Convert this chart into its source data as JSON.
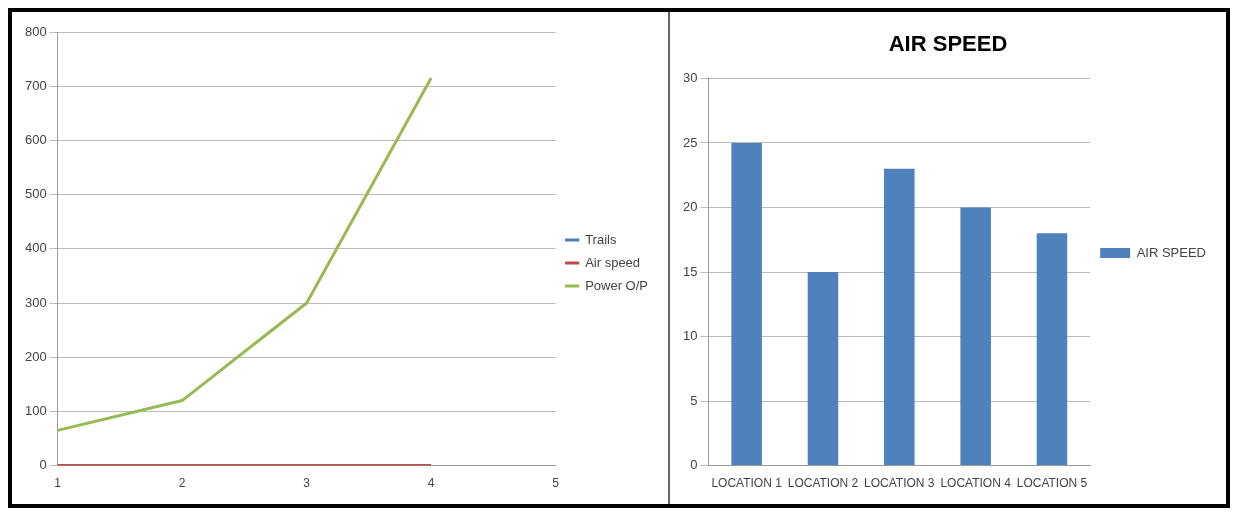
{
  "chart_data": [
    {
      "type": "line",
      "categories": [
        "1",
        "2",
        "3",
        "4",
        "5"
      ],
      "ylim": [
        0,
        800
      ],
      "yticks": [
        0,
        100,
        200,
        300,
        400,
        500,
        600,
        700,
        800
      ],
      "grid": "y",
      "legend": "right",
      "marker": "none",
      "line_style": "solid",
      "series": [
        {
          "name": "Trails",
          "color": "#4a7ebb",
          "values": [
            null,
            null,
            null,
            null,
            null
          ]
        },
        {
          "name": "Air speed",
          "color": "#be4b48",
          "values": [
            0,
            0,
            0,
            0,
            null
          ]
        },
        {
          "name": "Power O/P",
          "color": "#98b954",
          "values": [
            65,
            120,
            300,
            715,
            null
          ]
        }
      ]
    },
    {
      "type": "bar",
      "title": "AIR SPEED",
      "categories": [
        "LOCATION 1",
        "LOCATION 2",
        "LOCATION 3",
        "LOCATION 4",
        "LOCATION 5"
      ],
      "ylim": [
        0,
        30
      ],
      "yticks": [
        0,
        5,
        10,
        15,
        20,
        25,
        30
      ],
      "grid": "y",
      "legend": "right",
      "series": [
        {
          "name": "AIR SPEED",
          "color": "#4f81bd",
          "values": [
            25,
            15,
            23,
            20,
            18
          ]
        }
      ]
    }
  ]
}
